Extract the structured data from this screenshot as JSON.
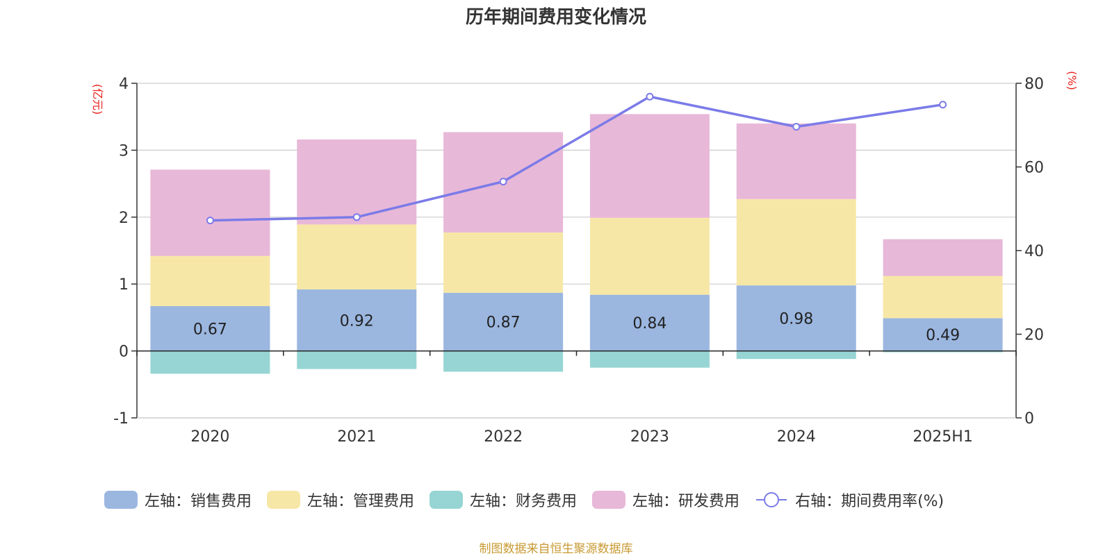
{
  "chart_data": {
    "type": "bar",
    "title": "历年期间费用变化情况",
    "ylabel_left": "(亿元)",
    "ylabel_right": "(%)",
    "categories": [
      "2020",
      "2021",
      "2022",
      "2023",
      "2024",
      "2025H1"
    ],
    "ylim_left": [
      -1,
      4
    ],
    "yticks_left": [
      -1,
      0,
      1,
      2,
      3,
      4
    ],
    "ylim_right": [
      0,
      80
    ],
    "yticks_right": [
      0,
      20,
      40,
      60,
      80
    ],
    "grid": true,
    "stacked": true,
    "series": [
      {
        "name": "左轴：销售费用",
        "axis": "left",
        "type": "bar",
        "color": "#9bb7e0",
        "values": [
          0.67,
          0.92,
          0.87,
          0.84,
          0.98,
          0.49
        ],
        "show_labels": true
      },
      {
        "name": "左轴：管理费用",
        "axis": "left",
        "type": "bar",
        "color": "#f7e7a6",
        "values": [
          0.75,
          0.97,
          0.9,
          1.15,
          1.29,
          0.63
        ]
      },
      {
        "name": "左轴：财务费用",
        "axis": "left",
        "type": "bar",
        "color": "#96d5d3",
        "values": [
          -0.34,
          -0.27,
          -0.31,
          -0.25,
          -0.12,
          -0.02
        ]
      },
      {
        "name": "左轴：研发费用",
        "axis": "left",
        "type": "bar",
        "color": "#e8b8d8",
        "values": [
          1.29,
          1.27,
          1.5,
          1.55,
          1.13,
          0.55
        ]
      },
      {
        "name": "右轴：期间费用率(%)",
        "axis": "right",
        "type": "line",
        "color": "#7b7be8",
        "values": [
          47.2,
          48.0,
          56.5,
          76.8,
          69.6,
          74.9
        ]
      }
    ],
    "legend_position": "bottom"
  },
  "source_note": "制图数据来自恒生聚源数据库",
  "colors": {
    "axis_label": "#e8201c",
    "source": "#c89a32",
    "text": "#333333",
    "grid": "#cccccc"
  }
}
